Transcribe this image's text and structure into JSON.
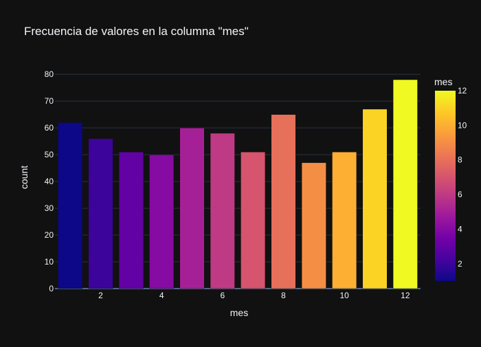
{
  "chart_data": {
    "type": "bar",
    "title": "Frecuencia de valores en la columna \"mes\"",
    "xlabel": "mes",
    "ylabel": "count",
    "x": [
      1,
      2,
      3,
      4,
      5,
      6,
      7,
      8,
      9,
      10,
      11,
      12
    ],
    "values": [
      62,
      56,
      51,
      50,
      60,
      58,
      51,
      65,
      47,
      51,
      67,
      78
    ],
    "xlim": [
      0.5,
      12.5
    ],
    "ylim": [
      0,
      82.1
    ],
    "xticks": [
      2,
      4,
      6,
      8,
      10,
      12
    ],
    "yticks": [
      0,
      10,
      20,
      30,
      40,
      50,
      60,
      70,
      80
    ],
    "grid": true,
    "colorbar": {
      "title": "mes",
      "range": [
        1,
        12
      ],
      "ticks": [
        2,
        4,
        6,
        8,
        10,
        12
      ],
      "colorscale": [
        "#0d0887",
        "#46039f",
        "#7201a8",
        "#9c179e",
        "#bd3786",
        "#d8576b",
        "#ed7953",
        "#fb9f3a",
        "#fdca26",
        "#f0f921"
      ]
    },
    "colors": {
      "background": "#111111",
      "grid": "#283442",
      "text": "#f2f5fa"
    }
  }
}
